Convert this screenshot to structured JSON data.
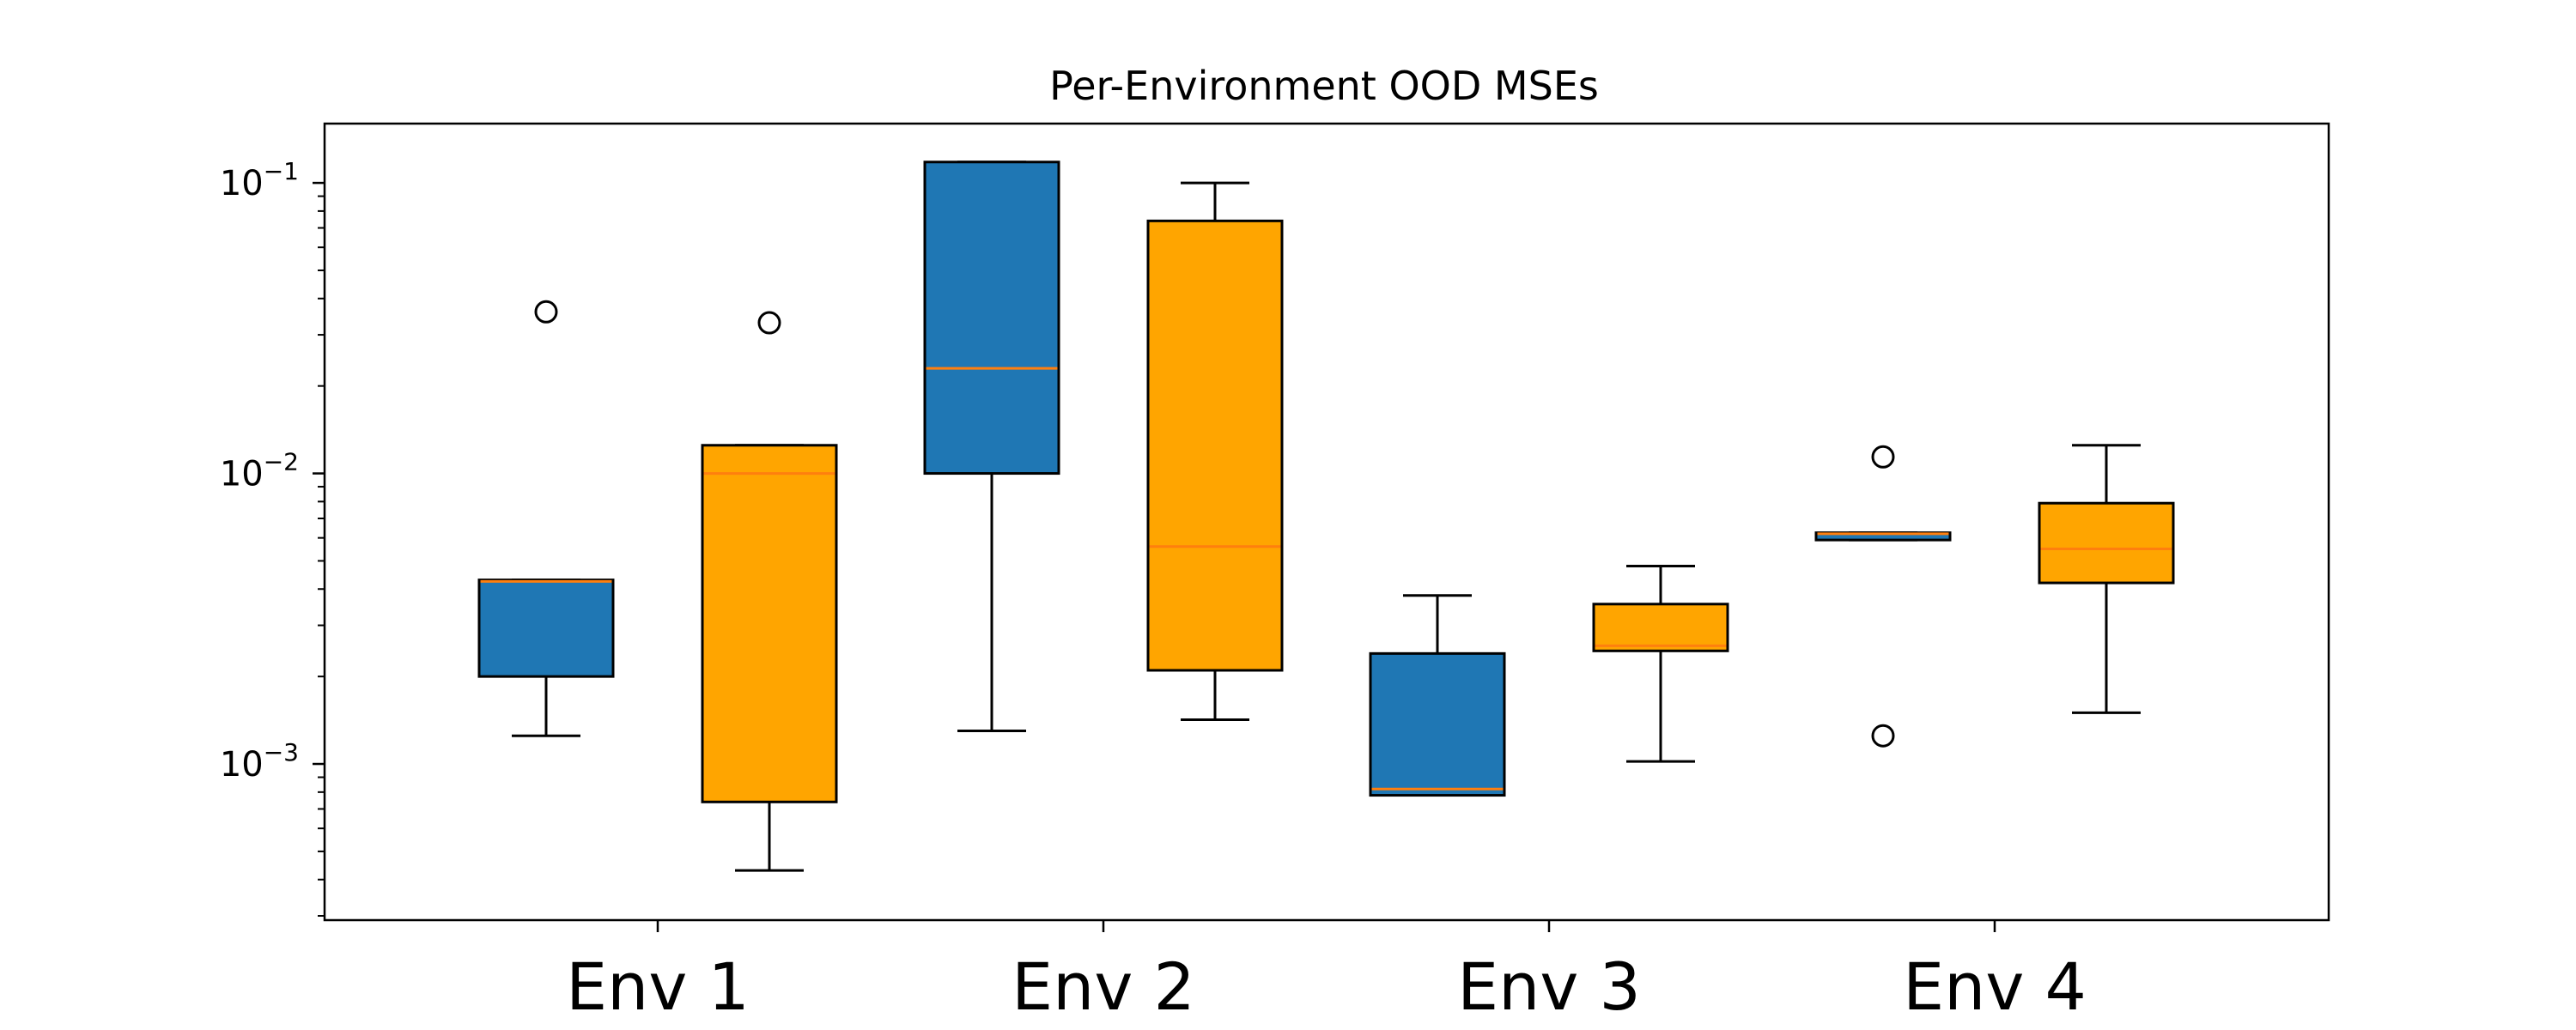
{
  "chart_data": {
    "type": "box",
    "title": "Per-Environment OOD MSEs",
    "xlabel": "",
    "ylabel": "",
    "yscale": "log",
    "ylim": [
      0.00029,
      0.16
    ],
    "categories": [
      "Env 1",
      "Env 2",
      "Env 3",
      "Env 4"
    ],
    "yticks": [
      {
        "value": 0.001,
        "base": "10",
        "exp": "−3"
      },
      {
        "value": 0.01,
        "base": "10",
        "exp": "−2"
      },
      {
        "value": 0.1,
        "base": "10",
        "exp": "−1"
      }
    ],
    "grid": false,
    "series": [
      {
        "color": "#1f77b4",
        "boxes": [
          {
            "category": "Env 1",
            "whisker_low": 0.00125,
            "q1": 0.002,
            "median": 0.00425,
            "q3": 0.0043,
            "whisker_high": 0.0043,
            "outliers": [
              0.036
            ]
          },
          {
            "category": "Env 2",
            "whisker_low": 0.0013,
            "q1": 0.01,
            "median": 0.023,
            "q3": 0.118,
            "whisker_high": 0.118,
            "outliers": []
          },
          {
            "category": "Env 3",
            "whisker_low": 0.00078,
            "q1": 0.00078,
            "median": 0.00082,
            "q3": 0.0024,
            "whisker_high": 0.0038,
            "outliers": []
          },
          {
            "category": "Env 4",
            "whisker_low": 0.0059,
            "q1": 0.0059,
            "median": 0.0062,
            "q3": 0.00625,
            "whisker_high": 0.00625,
            "outliers": [
              0.0114,
              0.00125
            ]
          }
        ]
      },
      {
        "color": "#ffa500",
        "boxes": [
          {
            "category": "Env 1",
            "whisker_low": 0.00043,
            "q1": 0.00074,
            "median": 0.01,
            "q3": 0.0125,
            "whisker_high": 0.0125,
            "outliers": [
              0.033
            ]
          },
          {
            "category": "Env 2",
            "whisker_low": 0.00142,
            "q1": 0.0021,
            "median": 0.0056,
            "q3": 0.074,
            "whisker_high": 0.1,
            "outliers": []
          },
          {
            "category": "Env 3",
            "whisker_low": 0.00102,
            "q1": 0.00245,
            "median": 0.00255,
            "q3": 0.00355,
            "whisker_high": 0.0048,
            "outliers": []
          },
          {
            "category": "Env 4",
            "whisker_low": 0.0015,
            "q1": 0.0042,
            "median": 0.0055,
            "q3": 0.0079,
            "whisker_high": 0.0125,
            "outliers": []
          }
        ]
      }
    ]
  }
}
